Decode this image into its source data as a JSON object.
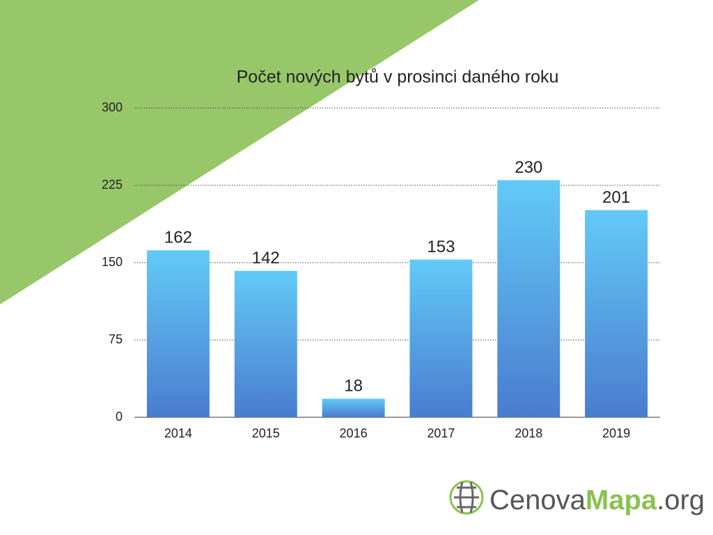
{
  "chart_data": {
    "type": "bar",
    "title": "Počet nových bytů v prosinci daného roku",
    "categories": [
      "2014",
      "2015",
      "2016",
      "2017",
      "2018",
      "2019"
    ],
    "values": [
      162,
      142,
      18,
      153,
      230,
      201
    ],
    "gradient": [
      "#62caf7",
      "#4a7ccf"
    ],
    "ylim": [
      0,
      300
    ],
    "yticks": [
      0,
      75,
      150,
      225,
      300
    ],
    "grid": true
  },
  "logo": {
    "parts": [
      "Cenova",
      "Mapa",
      ".org"
    ]
  }
}
